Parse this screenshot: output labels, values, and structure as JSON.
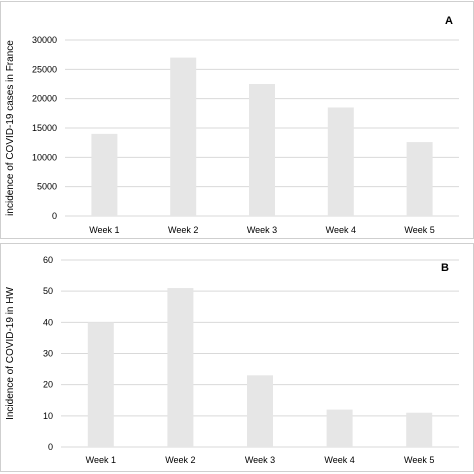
{
  "chart_data": [
    {
      "type": "bar",
      "panel_label": "A",
      "categories": [
        "Week 1",
        "Week 2",
        "Week 3",
        "Week 4",
        "Week 5"
      ],
      "values": [
        14000,
        27000,
        22500,
        18500,
        12600
      ],
      "ylabel": "incidence of COVID-19 cases in France",
      "xlabel": "",
      "ylim": [
        0,
        30000
      ],
      "yticks": [
        "0",
        "5000",
        "10000",
        "15000",
        "20000",
        "25000",
        "30000"
      ],
      "grid": true,
      "bar_color": "#e6e6e6",
      "grid_color": "#d9d9d9"
    },
    {
      "type": "bar",
      "panel_label": "B",
      "categories": [
        "Week 1",
        "Week 2",
        "Week 3",
        "Week 4",
        "Week 5"
      ],
      "values": [
        40,
        51,
        23,
        12,
        11
      ],
      "ylabel": "Incidence of COVID-19 in HW",
      "xlabel": "",
      "ylim": [
        0,
        60
      ],
      "yticks": [
        "0",
        "10",
        "20",
        "30",
        "40",
        "50",
        "60"
      ],
      "grid": true,
      "bar_color": "#e6e6e6",
      "grid_color": "#d9d9d9"
    }
  ]
}
